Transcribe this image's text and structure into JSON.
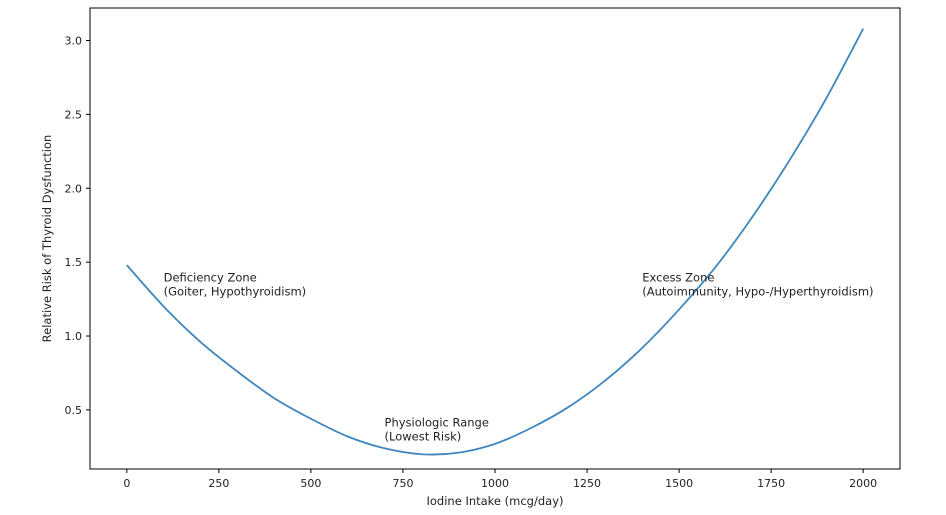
{
  "chart_data": {
    "type": "line",
    "title": "",
    "xlabel": "Iodine Intake (mcg/day)",
    "ylabel": "Relative Risk of Thyroid Dysfunction",
    "xlim": [
      -100,
      2100
    ],
    "ylim": [
      0.1,
      3.22
    ],
    "grid": false,
    "x_ticks": [
      0,
      250,
      500,
      750,
      1000,
      1250,
      1500,
      1750,
      2000
    ],
    "y_ticks": [
      0.5,
      1.0,
      1.5,
      2.0,
      2.5,
      3.0
    ],
    "series": [
      {
        "color": "#3f86bd",
        "x": [
          0,
          100,
          200,
          300,
          400,
          500,
          600,
          700,
          800,
          900,
          1000,
          1100,
          1200,
          1300,
          1400,
          1500,
          1600,
          1700,
          1800,
          1900,
          2000
        ],
        "y": [
          1.48,
          1.2,
          0.96,
          0.76,
          0.58,
          0.44,
          0.32,
          0.24,
          0.2,
          0.21,
          0.27,
          0.38,
          0.52,
          0.7,
          0.92,
          1.18,
          1.47,
          1.81,
          2.19,
          2.61,
          3.08
        ]
      }
    ],
    "annotations": [
      {
        "lines": [
          "Deficiency Zone",
          "(Goiter, Hypothyroidism)"
        ],
        "x": 100,
        "y": 1.3
      },
      {
        "lines": [
          "Physiologic Range",
          "(Lowest Risk)"
        ],
        "x": 700,
        "y": 0.32
      },
      {
        "lines": [
          "Excess Zone",
          "(Autoimmunity, Hypo-/Hyperthyroidism)"
        ],
        "x": 1400,
        "y": 1.3
      }
    ]
  }
}
